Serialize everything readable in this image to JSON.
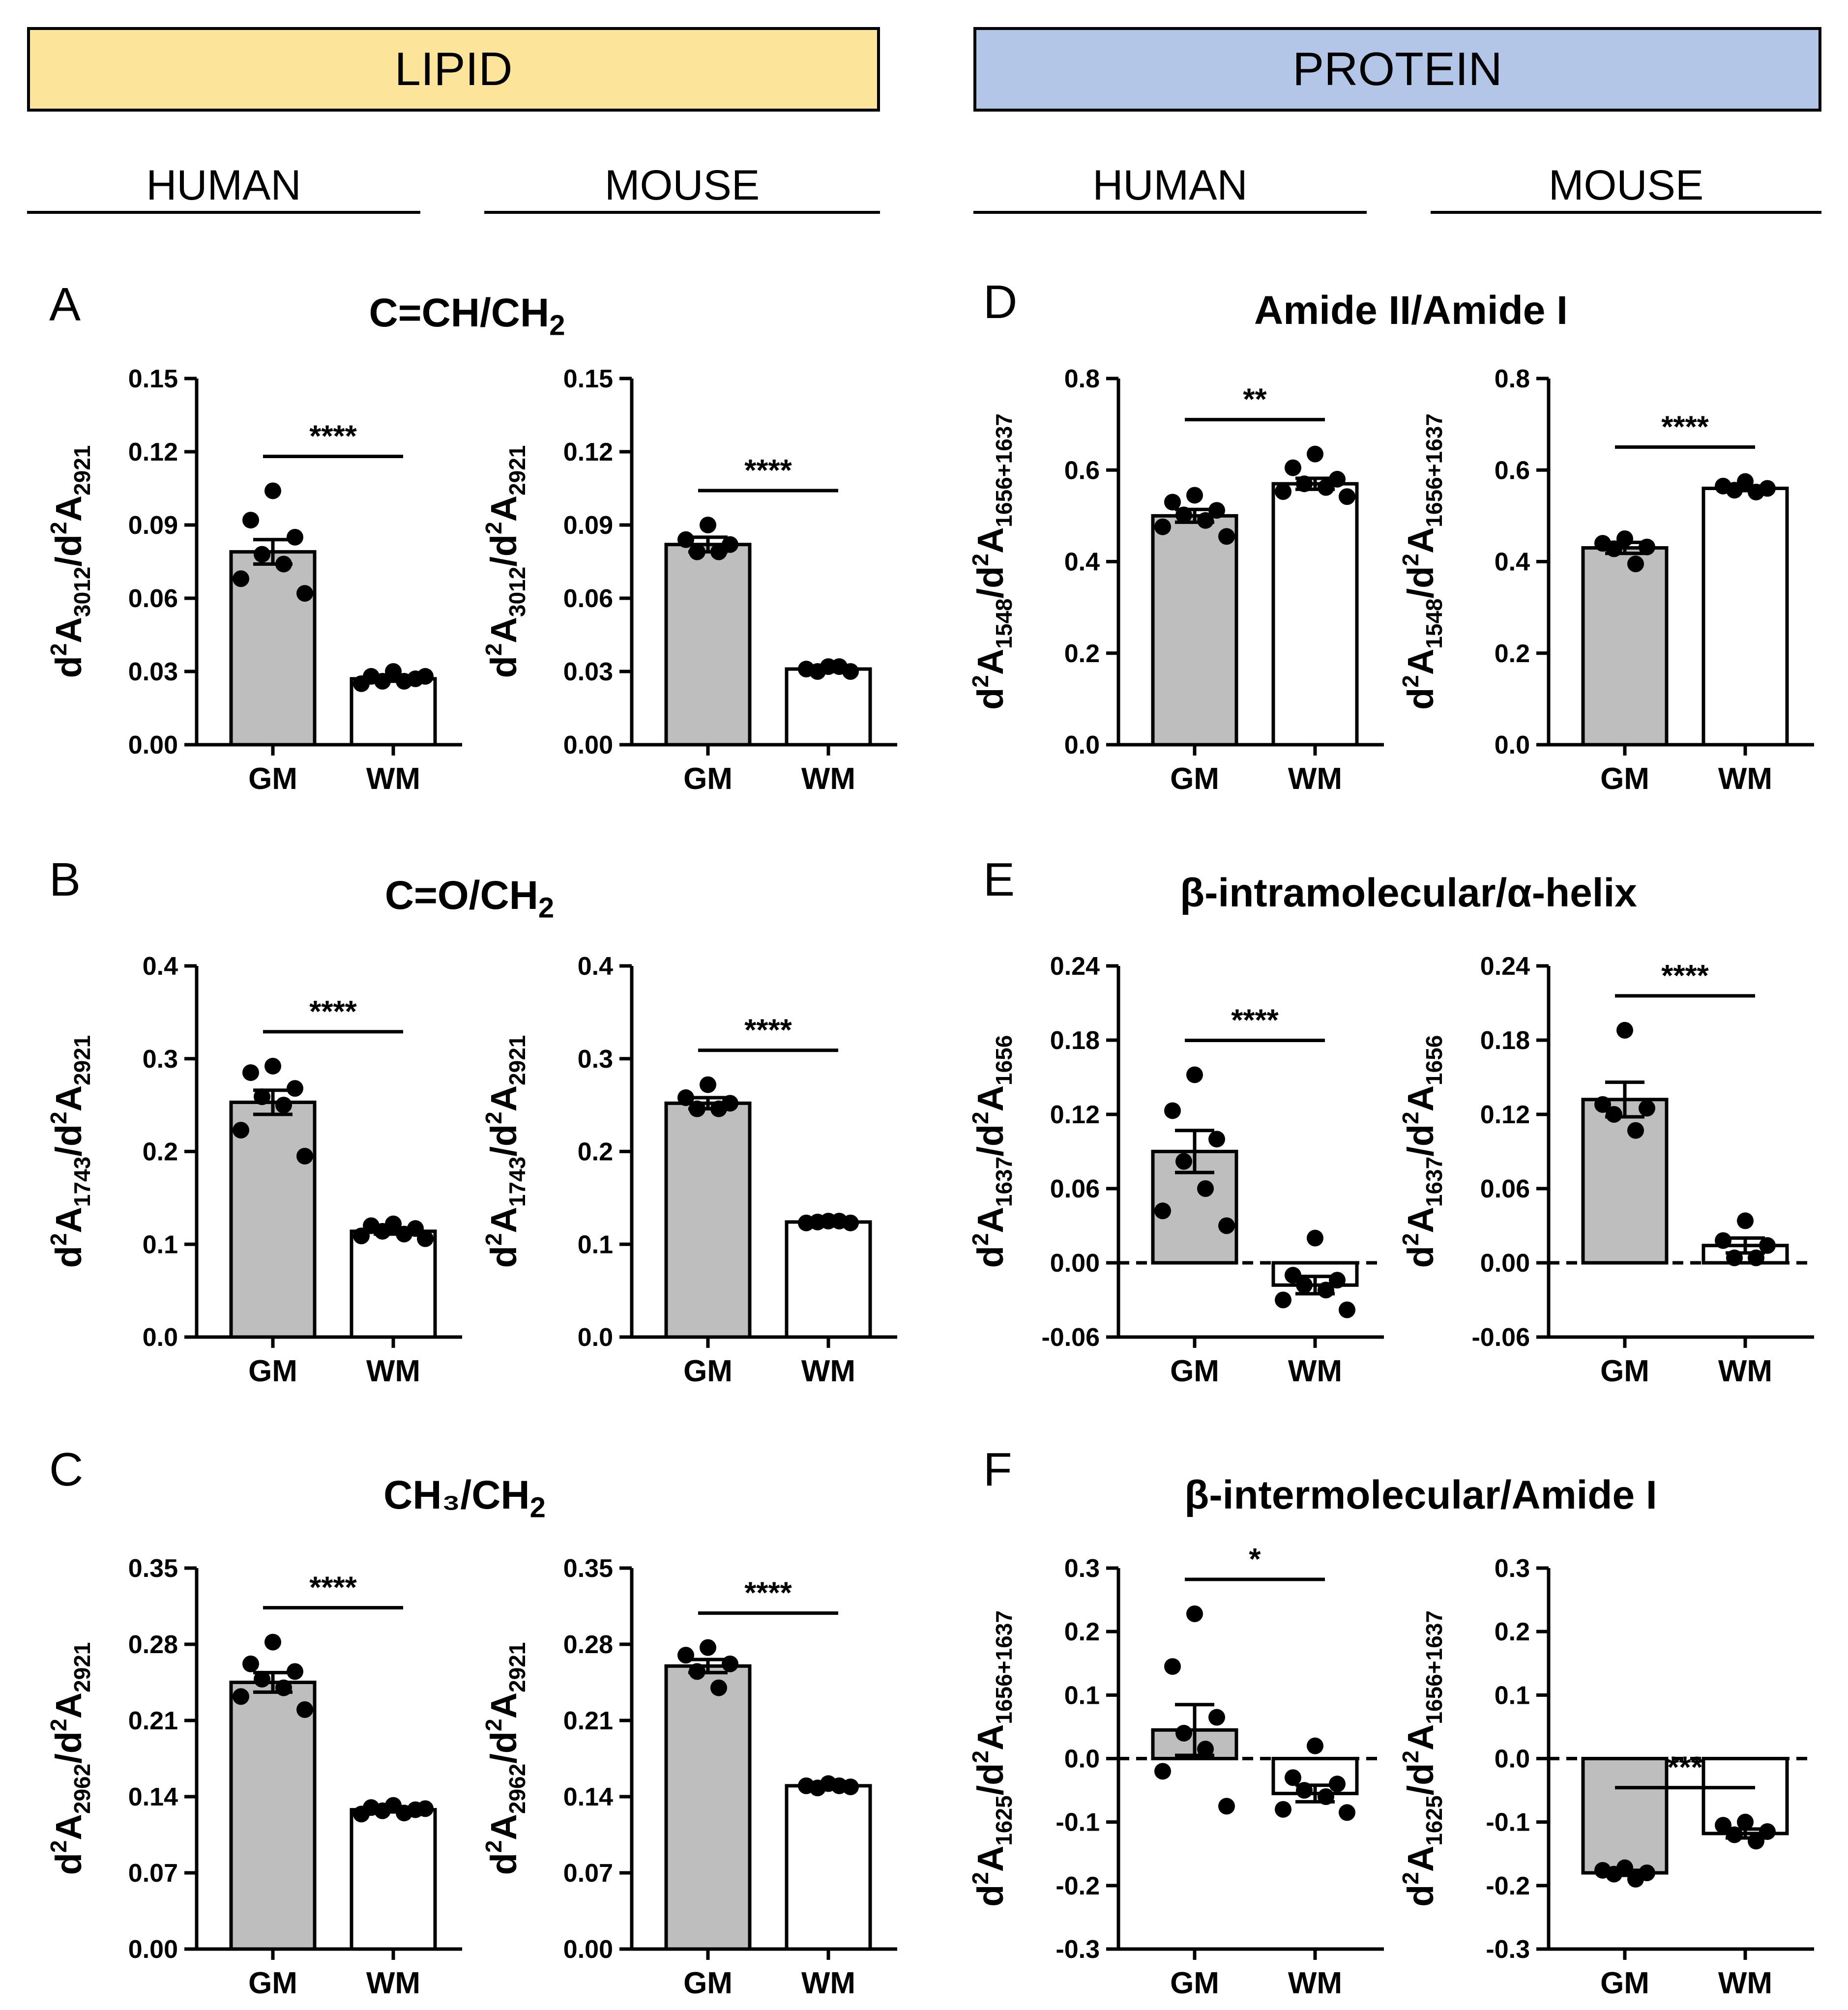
{
  "headers": {
    "lipid": "LIPID",
    "protein": "PROTEIN",
    "species": [
      "HUMAN",
      "MOUSE",
      "HUMAN",
      "MOUSE"
    ],
    "colors": {
      "lipid": "#FCE59A",
      "protein": "#B3C6E7",
      "gm_bar": "#BEBEBE",
      "wm_bar": "#FFFFFF"
    }
  },
  "panels": [
    {
      "letter": "A",
      "title_main": "C=CH/CH",
      "title_sub": "2"
    },
    {
      "letter": "B",
      "title_main": "C=O/CH",
      "title_sub": "2"
    },
    {
      "letter": "C",
      "title_main": "CH₃/CH",
      "title_sub": "2"
    },
    {
      "letter": "D",
      "title_main": "Amide II/Amide I",
      "title_sub": ""
    },
    {
      "letter": "E",
      "title_main": "β-intramolecular/α-helix",
      "title_sub": ""
    },
    {
      "letter": "F",
      "title_main": "β-intermolecular/Amide I",
      "title_sub": ""
    }
  ],
  "chart_data": [
    {
      "id": "A-human",
      "type": "bar",
      "categories": [
        "GM",
        "WM"
      ],
      "values": [
        0.079,
        0.027
      ],
      "errors": [
        0.005,
        0.001
      ],
      "points": [
        [
          0.104,
          0.092,
          0.085,
          0.078,
          0.074,
          0.068,
          0.062
        ],
        [
          0.03,
          0.028,
          0.027,
          0.026,
          0.026,
          0.025,
          0.028
        ]
      ],
      "ylabel": {
        "base": "A",
        "num": "3012",
        "den": "2921"
      },
      "ylim": [
        0,
        0.15
      ],
      "ticks": [
        "0.00",
        "0.03",
        "0.06",
        "0.09",
        "0.12",
        "0.15"
      ],
      "tick_values": [
        0,
        0.03,
        0.06,
        0.09,
        0.12,
        0.15
      ],
      "significance": "****",
      "zero_line": false
    },
    {
      "id": "A-mouse",
      "type": "bar",
      "categories": [
        "GM",
        "WM"
      ],
      "values": [
        0.082,
        0.031
      ],
      "errors": [
        0.003,
        0.001
      ],
      "points": [
        [
          0.09,
          0.084,
          0.082,
          0.079,
          0.079
        ],
        [
          0.032,
          0.031,
          0.03,
          0.03,
          0.032
        ]
      ],
      "ylabel": {
        "base": "A",
        "num": "3012",
        "den": "2921"
      },
      "ylim": [
        0,
        0.15
      ],
      "ticks": [
        "0.00",
        "0.03",
        "0.06",
        "0.09",
        "0.12",
        "0.15"
      ],
      "tick_values": [
        0,
        0.03,
        0.06,
        0.09,
        0.12,
        0.15
      ],
      "significance": "****",
      "zero_line": false
    },
    {
      "id": "B-human",
      "type": "bar",
      "categories": [
        "GM",
        "WM"
      ],
      "values": [
        0.253,
        0.114
      ],
      "errors": [
        0.013,
        0.003
      ],
      "points": [
        [
          0.292,
          0.285,
          0.268,
          0.259,
          0.25,
          0.223,
          0.195
        ],
        [
          0.122,
          0.12,
          0.117,
          0.114,
          0.111,
          0.109,
          0.106
        ]
      ],
      "ylabel": {
        "base": "A",
        "num": "1743",
        "den": "2921"
      },
      "ylim": [
        0,
        0.4
      ],
      "ticks": [
        "0.0",
        "0.1",
        "0.2",
        "0.3",
        "0.4"
      ],
      "tick_values": [
        0,
        0.1,
        0.2,
        0.3,
        0.4
      ],
      "significance": "****",
      "zero_line": false
    },
    {
      "id": "B-mouse",
      "type": "bar",
      "categories": [
        "GM",
        "WM"
      ],
      "values": [
        0.252,
        0.124
      ],
      "errors": [
        0.006,
        0.001
      ],
      "points": [
        [
          0.272,
          0.258,
          0.252,
          0.246,
          0.246
        ],
        [
          0.125,
          0.123,
          0.123,
          0.124,
          0.125
        ]
      ],
      "ylabel": {
        "base": "A",
        "num": "1743",
        "den": "2921"
      },
      "ylim": [
        0,
        0.4
      ],
      "ticks": [
        "0.0",
        "0.1",
        "0.2",
        "0.3",
        "0.4"
      ],
      "tick_values": [
        0,
        0.1,
        0.2,
        0.3,
        0.4
      ],
      "significance": "****",
      "zero_line": false
    },
    {
      "id": "C-human",
      "type": "bar",
      "categories": [
        "GM",
        "WM"
      ],
      "values": [
        0.245,
        0.128
      ],
      "errors": [
        0.009,
        0.002
      ],
      "points": [
        [
          0.282,
          0.262,
          0.255,
          0.248,
          0.24,
          0.232,
          0.22
        ],
        [
          0.132,
          0.13,
          0.128,
          0.127,
          0.125,
          0.124,
          0.129
        ]
      ],
      "ylabel": {
        "base": "A",
        "num": "2962",
        "den": "2921"
      },
      "ylim": [
        0,
        0.35
      ],
      "ticks": [
        "0.00",
        "0.07",
        "0.14",
        "0.21",
        "0.28",
        "0.35"
      ],
      "tick_values": [
        0,
        0.07,
        0.14,
        0.21,
        0.28,
        0.35
      ],
      "significance": "****",
      "zero_line": false
    },
    {
      "id": "C-mouse",
      "type": "bar",
      "categories": [
        "GM",
        "WM"
      ],
      "values": [
        0.26,
        0.15
      ],
      "errors": [
        0.006,
        0.001
      ],
      "points": [
        [
          0.277,
          0.27,
          0.262,
          0.255,
          0.24
        ],
        [
          0.152,
          0.15,
          0.149,
          0.148,
          0.15
        ]
      ],
      "ylabel": {
        "base": "A",
        "num": "2962",
        "den": "2921"
      },
      "ylim": [
        0,
        0.35
      ],
      "ticks": [
        "0.00",
        "0.07",
        "0.14",
        "0.21",
        "0.28",
        "0.35"
      ],
      "tick_values": [
        0,
        0.07,
        0.14,
        0.21,
        0.28,
        0.35
      ],
      "significance": "****",
      "zero_line": false
    },
    {
      "id": "D-human",
      "type": "bar",
      "categories": [
        "GM",
        "WM"
      ],
      "values": [
        0.5,
        0.57
      ],
      "errors": [
        0.014,
        0.012
      ],
      "points": [
        [
          0.545,
          0.53,
          0.512,
          0.502,
          0.49,
          0.476,
          0.455
        ],
        [
          0.635,
          0.605,
          0.58,
          0.57,
          0.562,
          0.553,
          0.542
        ]
      ],
      "ylabel": {
        "base": "A",
        "num": "1548",
        "den": "1656+1637"
      },
      "ylim": [
        0,
        0.8
      ],
      "ticks": [
        "0.0",
        "0.2",
        "0.4",
        "0.6",
        "0.8"
      ],
      "tick_values": [
        0,
        0.2,
        0.4,
        0.6,
        0.8
      ],
      "significance": "**",
      "zero_line": false
    },
    {
      "id": "D-mouse",
      "type": "bar",
      "categories": [
        "GM",
        "WM"
      ],
      "values": [
        0.43,
        0.56
      ],
      "errors": [
        0.012,
        0.005
      ],
      "points": [
        [
          0.45,
          0.44,
          0.432,
          0.428,
          0.395
        ],
        [
          0.575,
          0.565,
          0.56,
          0.556,
          0.552
        ]
      ],
      "ylabel": {
        "base": "A",
        "num": "1548",
        "den": "1656+1637"
      },
      "ylim": [
        0,
        0.8
      ],
      "ticks": [
        "0.0",
        "0.2",
        "0.4",
        "0.6",
        "0.8"
      ],
      "tick_values": [
        0,
        0.2,
        0.4,
        0.6,
        0.8
      ],
      "significance": "****",
      "zero_line": false
    },
    {
      "id": "E-human",
      "type": "bar",
      "categories": [
        "GM",
        "WM"
      ],
      "values": [
        0.09,
        -0.018
      ],
      "errors": [
        0.017,
        0.007
      ],
      "points": [
        [
          0.152,
          0.123,
          0.1,
          0.082,
          0.06,
          0.042,
          0.03
        ],
        [
          0.02,
          -0.01,
          -0.014,
          -0.018,
          -0.022,
          -0.03,
          -0.038
        ]
      ],
      "ylabel": {
        "base": "A",
        "num": "1637",
        "den": "1656"
      },
      "ylim": [
        -0.06,
        0.24
      ],
      "ticks": [
        "-0.06",
        "0.00",
        "0.06",
        "0.12",
        "0.18",
        "0.24"
      ],
      "tick_values": [
        -0.06,
        0,
        0.06,
        0.12,
        0.18,
        0.24
      ],
      "significance": "****",
      "zero_line": true
    },
    {
      "id": "E-mouse",
      "type": "bar",
      "categories": [
        "GM",
        "WM"
      ],
      "values": [
        0.132,
        0.014
      ],
      "errors": [
        0.014,
        0.006
      ],
      "points": [
        [
          0.188,
          0.128,
          0.125,
          0.12,
          0.107
        ],
        [
          0.034,
          0.018,
          0.014,
          0.004,
          0.004
        ]
      ],
      "ylabel": {
        "base": "A",
        "num": "1637",
        "den": "1656"
      },
      "ylim": [
        -0.06,
        0.24
      ],
      "ticks": [
        "-0.06",
        "0.00",
        "0.06",
        "0.12",
        "0.18",
        "0.24"
      ],
      "tick_values": [
        -0.06,
        0,
        0.06,
        0.12,
        0.18,
        0.24
      ],
      "significance": "****",
      "zero_line": true
    },
    {
      "id": "F-human",
      "type": "bar",
      "categories": [
        "GM",
        "WM"
      ],
      "values": [
        0.045,
        -0.055
      ],
      "errors": [
        0.04,
        0.013
      ],
      "points": [
        [
          0.228,
          0.145,
          0.065,
          0.04,
          0.015,
          -0.02,
          -0.075
        ],
        [
          0.02,
          -0.03,
          -0.04,
          -0.05,
          -0.06,
          -0.08,
          -0.085
        ]
      ],
      "ylabel": {
        "base": "A",
        "num": "1625",
        "den": "1656+1637"
      },
      "ylim": [
        -0.3,
        0.3
      ],
      "ticks": [
        "-0.3",
        "-0.2",
        "-0.1",
        "0.0",
        "0.1",
        "0.2",
        "0.3"
      ],
      "tick_values": [
        -0.3,
        -0.2,
        -0.1,
        0,
        0.1,
        0.2,
        0.3
      ],
      "significance": "*",
      "zero_line": true
    },
    {
      "id": "F-mouse",
      "type": "bar",
      "categories": [
        "GM",
        "WM"
      ],
      "values": [
        -0.18,
        -0.118
      ],
      "errors": [
        0.004,
        0.007
      ],
      "points": [
        [
          -0.172,
          -0.176,
          -0.18,
          -0.182,
          -0.19
        ],
        [
          -0.1,
          -0.105,
          -0.115,
          -0.12,
          -0.13
        ]
      ],
      "ylabel": {
        "base": "A",
        "num": "1625",
        "den": "1656+1637"
      },
      "ylim": [
        -0.3,
        0.3
      ],
      "ticks": [
        "-0.3",
        "-0.2",
        "-0.1",
        "0.0",
        "0.1",
        "0.2",
        "0.3"
      ],
      "tick_values": [
        -0.3,
        -0.2,
        -0.1,
        0,
        0.1,
        0.2,
        0.3
      ],
      "significance": "***",
      "zero_line": true
    }
  ]
}
